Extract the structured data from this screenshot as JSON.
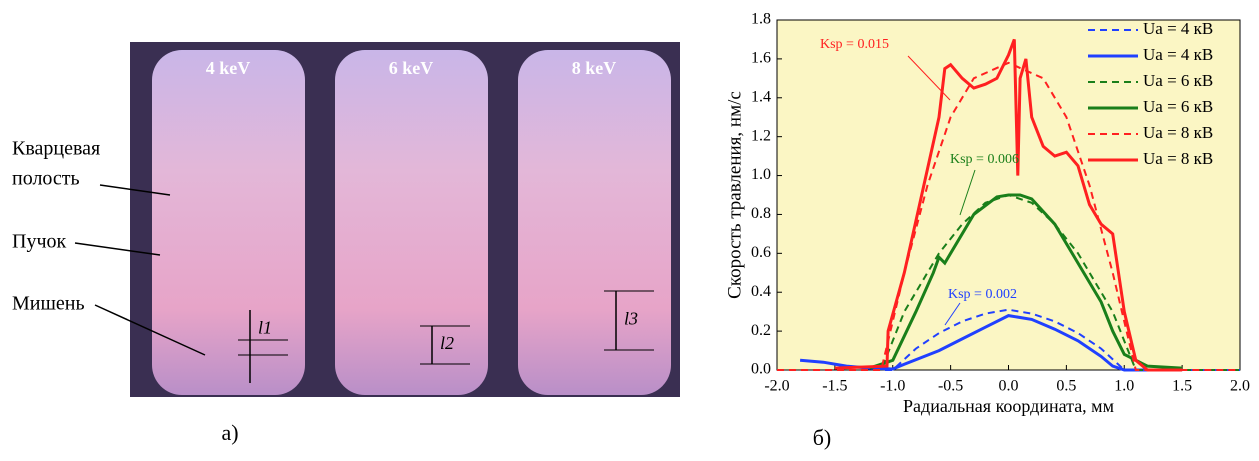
{
  "photo_panel": {
    "beam_labels": [
      "4 keV",
      "6 keV",
      "8 keV"
    ],
    "side_labels": [
      "Кварцевая",
      "полость",
      "Пучок",
      "Мишень"
    ],
    "lengths": [
      "l1",
      "l2",
      "l3"
    ],
    "panel_label": "а)"
  },
  "chart_data": {
    "type": "line",
    "panel_label": "б)",
    "x_label": "Радиальная координата, мм",
    "y_label": "Скорость травления, нм/с",
    "xlim": [
      -2.0,
      2.0
    ],
    "ylim": [
      0.0,
      1.8
    ],
    "xticks": [
      {
        "value": -2,
        "label": "-2.0"
      },
      -1.5,
      {
        "value": -1,
        "label": "-1.0"
      },
      -0.5,
      {
        "value": 0,
        "label": "0.0"
      },
      0.5,
      {
        "value": 1,
        "label": "1.0"
      },
      1.5,
      {
        "value": 2,
        "label": "2.0"
      }
    ],
    "yticks": [
      {
        "value": 0,
        "label": "0.0"
      },
      0.2,
      0.4,
      0.6,
      0.8,
      {
        "value": 1,
        "label": "1.0"
      },
      1.2,
      1.4,
      1.6,
      1.8
    ],
    "background": "#fbf6c4",
    "series": [
      {
        "name": "Ua = 4 кВ",
        "color": "#2040ff",
        "dashed": true,
        "x": [
          -2.0,
          -1.0,
          -0.8,
          -0.6,
          -0.4,
          -0.2,
          0,
          0.2,
          0.4,
          0.6,
          0.8,
          1.0,
          2.0
        ],
        "values": [
          0,
          0,
          0.11,
          0.19,
          0.25,
          0.29,
          0.31,
          0.29,
          0.25,
          0.19,
          0.11,
          0,
          0
        ]
      },
      {
        "name": "Ua = 4 кВ",
        "color": "#2040ff",
        "dashed": false,
        "x": [
          -1.8,
          -1.6,
          -1.4,
          -1.2,
          -1.0,
          -0.9,
          -0.6,
          -0.4,
          -0.2,
          0,
          0.2,
          0.4,
          0.6,
          0.8,
          0.9,
          1.0,
          1.2,
          1.5
        ],
        "values": [
          0.05,
          0.04,
          0.02,
          0.01,
          0.005,
          0.03,
          0.1,
          0.16,
          0.22,
          0.28,
          0.26,
          0.21,
          0.15,
          0.07,
          0.02,
          0,
          0,
          0
        ]
      },
      {
        "name": "Ua = 6 кВ",
        "color": "#1a7f1a",
        "dashed": true,
        "x": [
          -2.0,
          -1.1,
          -0.9,
          -0.6,
          -0.4,
          -0.2,
          0,
          0.2,
          0.4,
          0.6,
          0.9,
          1.1,
          2.0
        ],
        "values": [
          0,
          0,
          0.3,
          0.6,
          0.75,
          0.86,
          0.9,
          0.86,
          0.75,
          0.6,
          0.3,
          0,
          0
        ]
      },
      {
        "name": "Ua = 6 кВ",
        "color": "#1a7f1a",
        "dashed": false,
        "x": [
          -1.2,
          -1.0,
          -0.8,
          -0.65,
          -0.6,
          -0.55,
          -0.5,
          -0.3,
          -0.1,
          0,
          0.1,
          0.2,
          0.4,
          0.6,
          0.8,
          0.9,
          1.0,
          1.2,
          1.5
        ],
        "values": [
          0.01,
          0.05,
          0.3,
          0.5,
          0.58,
          0.55,
          0.6,
          0.8,
          0.89,
          0.9,
          0.9,
          0.88,
          0.75,
          0.55,
          0.35,
          0.2,
          0.08,
          0.02,
          0.01
        ]
      },
      {
        "name": "Ua = 8 кВ",
        "color": "#ff2020",
        "dashed": true,
        "x": [
          -2.0,
          -1.1,
          -0.9,
          -0.7,
          -0.5,
          -0.3,
          0,
          0.3,
          0.5,
          0.7,
          0.9,
          1.1,
          2.0
        ],
        "values": [
          0,
          0,
          0.5,
          0.95,
          1.3,
          1.5,
          1.58,
          1.5,
          1.3,
          0.95,
          0.5,
          0,
          0
        ]
      },
      {
        "name": "Ua = 8 кВ",
        "color": "#ff2020",
        "dashed": false,
        "x": [
          -1.5,
          -1.05,
          -1.04,
          -0.9,
          -0.75,
          -0.6,
          -0.55,
          -0.5,
          -0.4,
          -0.3,
          -0.2,
          -0.1,
          0,
          0.05,
          0.08,
          0.1,
          0.15,
          0.2,
          0.3,
          0.4,
          0.5,
          0.6,
          0.7,
          0.8,
          0.9,
          0.95,
          1.0,
          1.1,
          1.2,
          1.5
        ],
        "values": [
          0.01,
          0.02,
          0.2,
          0.5,
          0.9,
          1.3,
          1.55,
          1.57,
          1.5,
          1.45,
          1.47,
          1.5,
          1.62,
          1.7,
          1.0,
          1.5,
          1.6,
          1.3,
          1.15,
          1.1,
          1.12,
          1.05,
          0.85,
          0.75,
          0.7,
          0.5,
          0.3,
          0.05,
          0,
          0
        ]
      }
    ],
    "annotations": [
      {
        "text": "Ksp = 0.015",
        "color": "#ff2020"
      },
      {
        "text": "Ksp = 0.006",
        "color": "#1a7f1a"
      },
      {
        "text": "Ksp = 0.002",
        "color": "#2040ff"
      }
    ]
  }
}
